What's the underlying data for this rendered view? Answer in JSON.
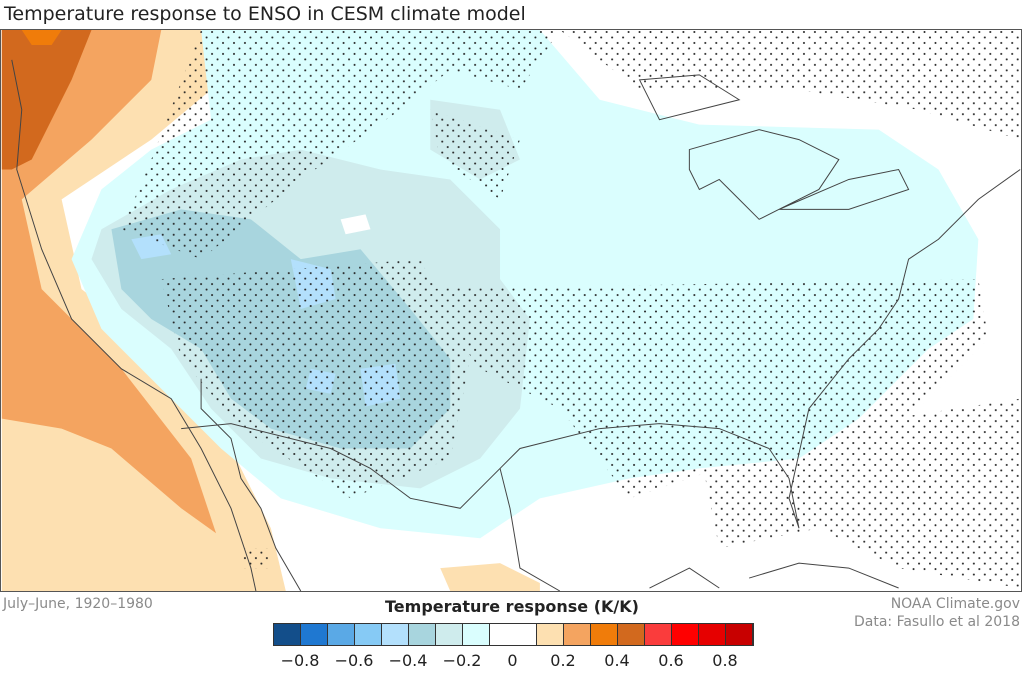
{
  "title": "Temperature response to ENSO in CESM climate model",
  "period": "July–June, 1920–1980",
  "credit": [
    "NOAA Climate.gov",
    "Data: Fasullo et al 2018"
  ],
  "legend": {
    "title": "Temperature response (K/K)",
    "colors": [
      "#134e8a",
      "#1f78d1",
      "#5aa9e6",
      "#86caf5",
      "#b3e0fc",
      "#a8d5de",
      "#cfeced",
      "#dafefe",
      "#ffffff",
      "#fde0b1",
      "#f4a460",
      "#f07c0a",
      "#d2691e",
      "#fa3c3c",
      "#ff0000",
      "#e60000",
      "#c80000"
    ],
    "ticks": [
      "−0.8",
      "−0.6",
      "−0.4",
      "−0.2",
      "0",
      "0.2",
      "0.4",
      "0.6",
      "0.8"
    ]
  },
  "map": {
    "region": "United States and surrounding areas",
    "stippling": "statistically significant areas"
  }
}
